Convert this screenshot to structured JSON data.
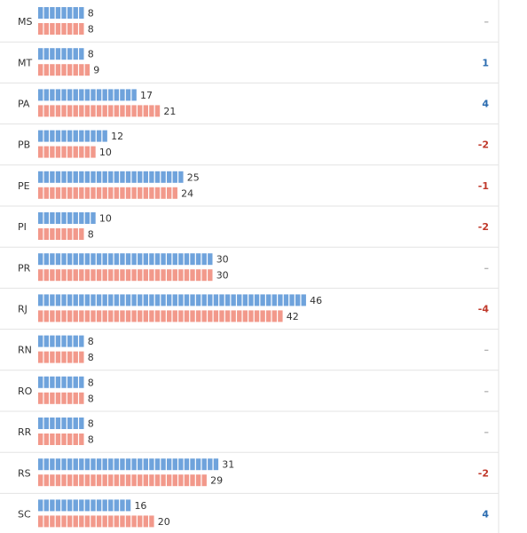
{
  "chart_data": {
    "type": "bar",
    "orientation": "horizontal",
    "categories": [
      "MS",
      "MT",
      "PA",
      "PB",
      "PE",
      "PI",
      "PR",
      "RJ",
      "RN",
      "RO",
      "RR",
      "RS",
      "SC"
    ],
    "series": [
      {
        "values": [
          8,
          8,
          17,
          12,
          25,
          10,
          30,
          46,
          8,
          8,
          8,
          31,
          16
        ]
      },
      {
        "values": [
          8,
          9,
          21,
          10,
          24,
          8,
          30,
          42,
          8,
          8,
          8,
          29,
          20
        ]
      }
    ],
    "change_labels": [
      "–",
      "1",
      "4",
      "-2",
      "-1",
      "-2",
      "–",
      "-4",
      "–",
      "–",
      "–",
      "-2",
      "4"
    ],
    "colors": {
      "series_1": "#6fa3dc",
      "series_2": "#f2998b",
      "positive": "#2b6cb0",
      "negative": "#c0392b",
      "neutral": "#b5b5b5",
      "divider": "#e3e3e3"
    }
  }
}
